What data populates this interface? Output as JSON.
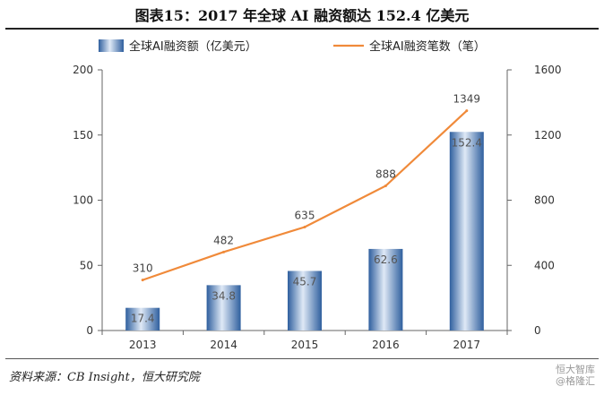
{
  "header": {
    "title": "图表15：2017 年全球 AI 融资额达 152.4 亿美元"
  },
  "footer": {
    "source": "资料来源：CB Insight，恒大研究院",
    "watermark": "恒大智库",
    "watermark_sub": "@格隆汇"
  },
  "colors": {
    "bar": "#4f86c6",
    "line": "#f08a3a"
  },
  "chart_data": {
    "type": "bar",
    "categories": [
      "2013",
      "2014",
      "2015",
      "2016",
      "2017"
    ],
    "series": [
      {
        "name": "全球AI融资额（亿美元）",
        "type": "bar",
        "axis": "left",
        "values": [
          17.4,
          34.8,
          45.7,
          62.6,
          152.4
        ]
      },
      {
        "name": "全球AI融资笔数（笔）",
        "type": "line",
        "axis": "right",
        "values": [
          310,
          482,
          635,
          888,
          1349
        ]
      }
    ],
    "ylim": [
      0,
      200
    ],
    "yticks": [
      0,
      50,
      100,
      150,
      200
    ],
    "y2lim": [
      0,
      1600
    ],
    "y2ticks": [
      0,
      400,
      800,
      1200,
      1600
    ],
    "legend": "top",
    "grid": false
  }
}
